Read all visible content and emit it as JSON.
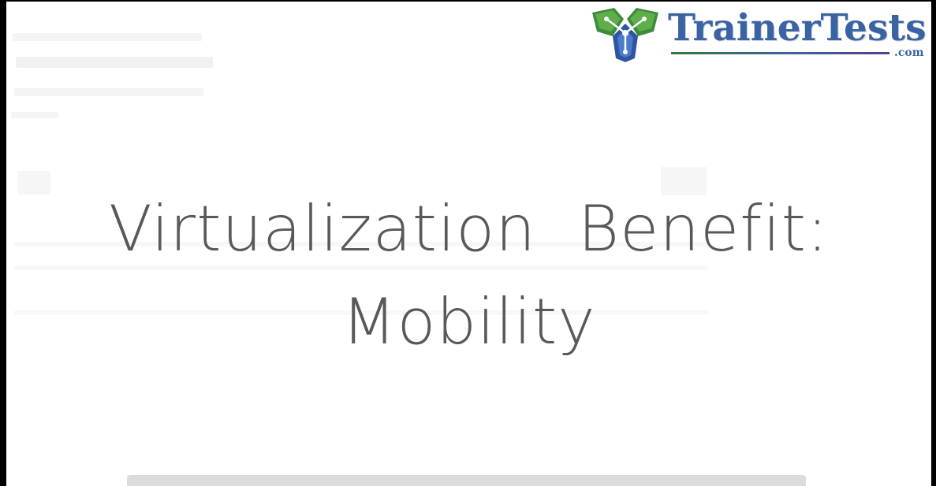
{
  "slide": {
    "title_line1": "Virtualization  Benefit:",
    "title_line2": "Mobility"
  },
  "logo": {
    "name": "TrainerTests",
    "suffix": ".com",
    "icon": "trainertests-cube-icon"
  },
  "colors": {
    "logo_blue": "#3a63a3",
    "logo_green": "#2f7c39",
    "title_gray": "#595959",
    "bar_gray": "#dcdcdc"
  }
}
